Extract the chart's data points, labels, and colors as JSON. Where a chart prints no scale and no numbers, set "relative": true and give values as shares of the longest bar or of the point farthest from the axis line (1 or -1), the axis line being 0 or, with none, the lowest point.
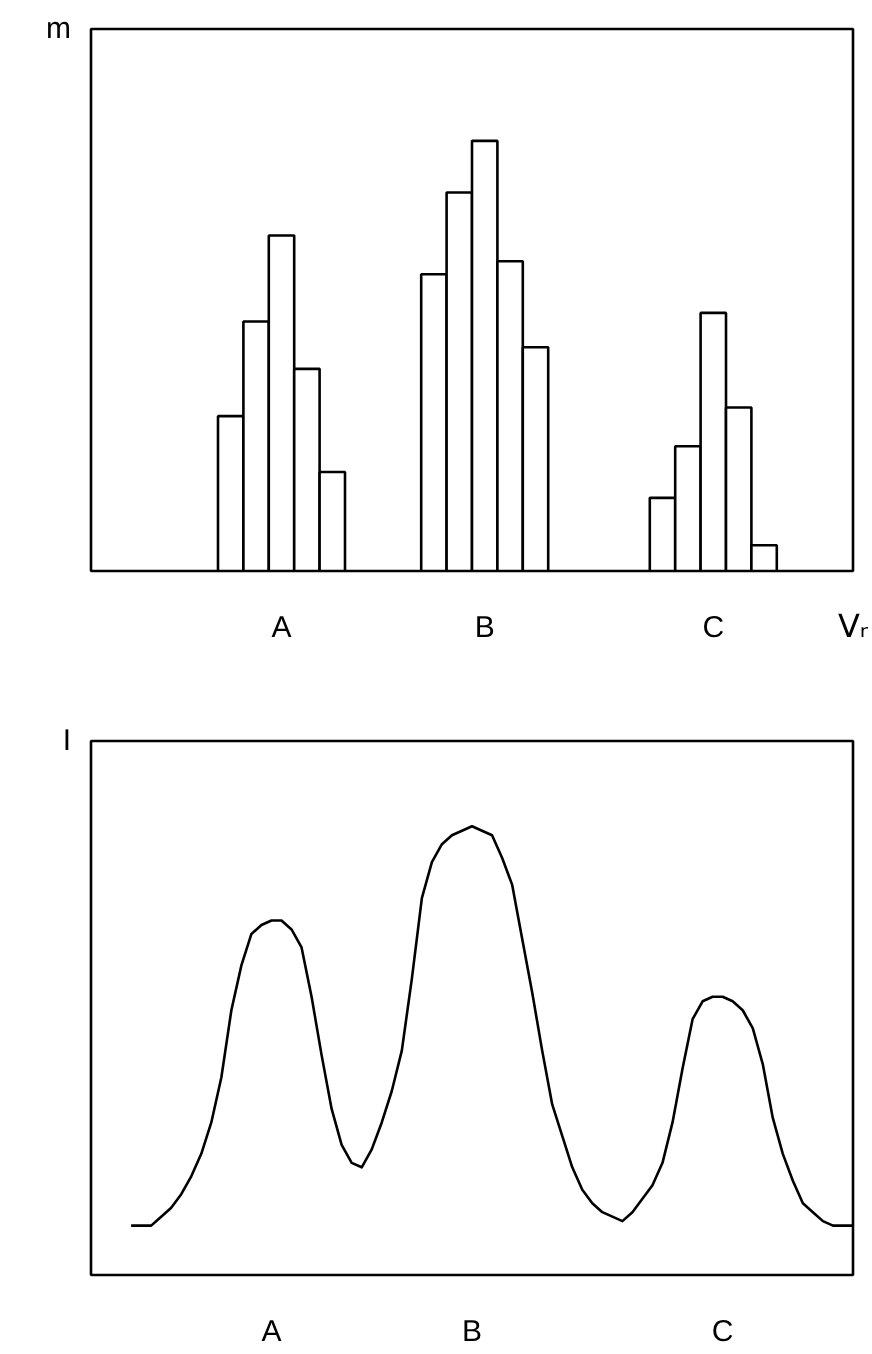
{
  "chart_data": [
    {
      "type": "bar",
      "relative": true,
      "ylabel": "m",
      "xlabel": "Vᵣ",
      "color": "#ffffff",
      "categories": [
        null,
        null,
        null,
        null,
        null,
        null,
        null,
        "A",
        null,
        null,
        null,
        null,
        null,
        null,
        null,
        "B",
        null,
        null,
        null,
        null,
        null,
        null,
        null,
        null,
        "C",
        null,
        null,
        null,
        null,
        null
      ],
      "values": [
        null,
        null,
        null,
        null,
        null,
        0.36,
        0.58,
        0.78,
        0.47,
        0.23,
        null,
        null,
        null,
        0.69,
        0.88,
        1.0,
        0.72,
        0.52,
        null,
        null,
        null,
        null,
        0.17,
        0.29,
        0.6,
        0.38,
        0.06,
        null,
        null,
        null
      ]
    },
    {
      "type": "line",
      "relative": true,
      "ylabel": "I",
      "color": "#000000",
      "categories": [
        null,
        null,
        null,
        null,
        null,
        null,
        null,
        null,
        null,
        null,
        null,
        null,
        null,
        null,
        "A",
        null,
        null,
        null,
        null,
        null,
        null,
        null,
        null,
        null,
        null,
        null,
        null,
        null,
        null,
        null,
        null,
        null,
        null,
        null,
        "B",
        null,
        null,
        null,
        null,
        null,
        null,
        null,
        null,
        null,
        null,
        null,
        null,
        null,
        null,
        null,
        null,
        null,
        null,
        null,
        null,
        null,
        null,
        null,
        null,
        "C",
        null,
        null,
        null,
        null,
        null,
        null,
        null,
        null,
        null,
        null,
        null,
        null,
        null
      ],
      "values": [
        0.11,
        0.11,
        0.11,
        0.13,
        0.15,
        0.18,
        0.22,
        0.27,
        0.34,
        0.44,
        0.59,
        0.69,
        0.76,
        0.78,
        0.79,
        0.79,
        0.77,
        0.73,
        0.62,
        0.49,
        0.37,
        0.29,
        0.25,
        0.24,
        0.28,
        0.34,
        0.41,
        0.5,
        0.66,
        0.84,
        0.92,
        0.96,
        0.98,
        0.99,
        1.0,
        0.99,
        0.98,
        0.93,
        0.87,
        0.75,
        0.63,
        0.5,
        0.38,
        0.31,
        0.24,
        0.19,
        0.16,
        0.14,
        0.13,
        0.12,
        0.14,
        0.17,
        0.2,
        0.25,
        0.34,
        0.46,
        0.57,
        0.61,
        0.62,
        0.62,
        0.61,
        0.59,
        0.55,
        0.47,
        0.35,
        0.27,
        0.21,
        0.16,
        0.14,
        0.12,
        0.11,
        0.11,
        0.11
      ]
    }
  ]
}
